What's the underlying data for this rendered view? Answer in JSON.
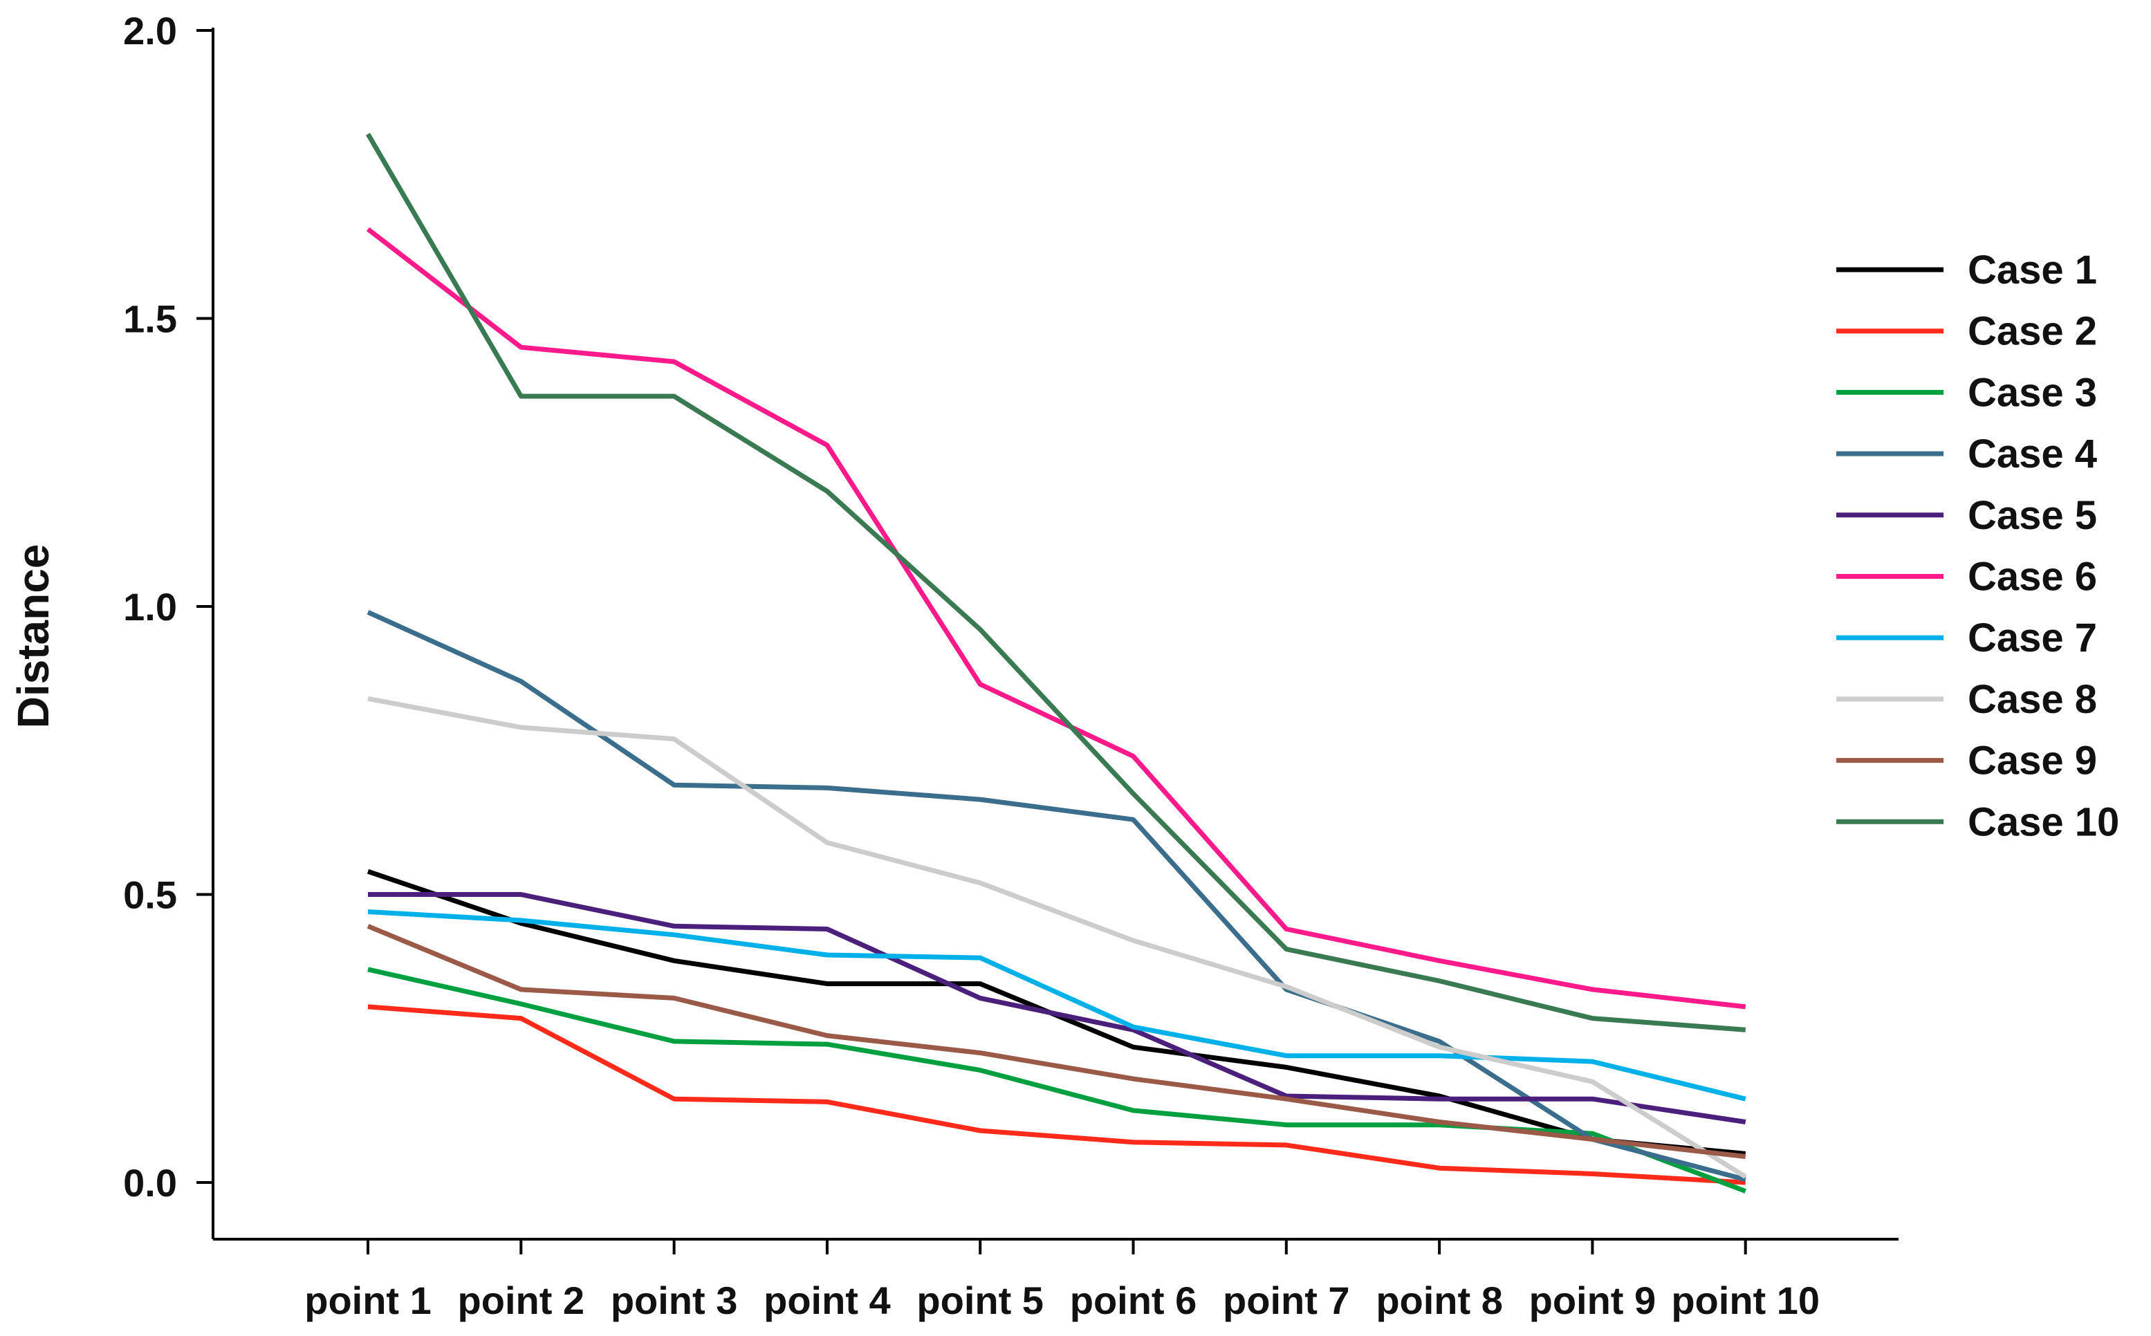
{
  "chart_data": {
    "type": "line",
    "title": "",
    "xlabel": "",
    "ylabel": "Distance",
    "ylim": [
      -0.1,
      2.0
    ],
    "yticks": [
      "2.0",
      "1.5",
      "1.0",
      "0.5",
      "0.0"
    ],
    "grid": false,
    "legend_position": "right",
    "categories": [
      "point 1",
      "point 2",
      "point 3",
      "point 4",
      "point 5",
      "point 6",
      "point 7",
      "point 8",
      "point 9",
      "point 10"
    ],
    "series": [
      {
        "name": "Case 1",
        "color": "#000000",
        "values": [
          0.54,
          0.45,
          0.385,
          0.345,
          0.345,
          0.235,
          0.2,
          0.15,
          0.075,
          0.05
        ]
      },
      {
        "name": "Case 2",
        "color": "#ff2a1a",
        "values": [
          0.305,
          0.285,
          0.145,
          0.14,
          0.09,
          0.07,
          0.065,
          0.025,
          0.015,
          0.0
        ]
      },
      {
        "name": "Case 3",
        "color": "#00a040",
        "values": [
          0.37,
          0.31,
          0.245,
          0.24,
          0.195,
          0.125,
          0.1,
          0.1,
          0.085,
          -0.015
        ]
      },
      {
        "name": "Case 4",
        "color": "#3a6e8c",
        "values": [
          0.99,
          0.87,
          0.69,
          0.685,
          0.665,
          0.63,
          0.335,
          0.245,
          0.075,
          0.005
        ]
      },
      {
        "name": "Case 5",
        "color": "#4b1f7c",
        "values": [
          0.5,
          0.5,
          0.445,
          0.44,
          0.32,
          0.265,
          0.15,
          0.145,
          0.145,
          0.105
        ]
      },
      {
        "name": "Case 6",
        "color": "#ff1a8c",
        "values": [
          1.655,
          1.45,
          1.425,
          1.28,
          0.865,
          0.74,
          0.44,
          0.385,
          0.335,
          0.305
        ]
      },
      {
        "name": "Case 7",
        "color": "#00b0e8",
        "values": [
          0.47,
          0.455,
          0.43,
          0.395,
          0.39,
          0.27,
          0.22,
          0.22,
          0.21,
          0.145
        ]
      },
      {
        "name": "Case 8",
        "color": "#cccccc",
        "values": [
          0.84,
          0.79,
          0.77,
          0.59,
          0.52,
          0.42,
          0.34,
          0.235,
          0.175,
          0.01
        ]
      },
      {
        "name": "Case 9",
        "color": "#9b5a47",
        "values": [
          0.445,
          0.335,
          0.32,
          0.255,
          0.225,
          0.18,
          0.145,
          0.105,
          0.075,
          0.045
        ]
      },
      {
        "name": "Case 10",
        "color": "#3a7a52",
        "values": [
          1.82,
          1.365,
          1.365,
          1.2,
          0.96,
          0.675,
          0.405,
          0.35,
          0.285,
          0.265
        ]
      }
    ]
  }
}
